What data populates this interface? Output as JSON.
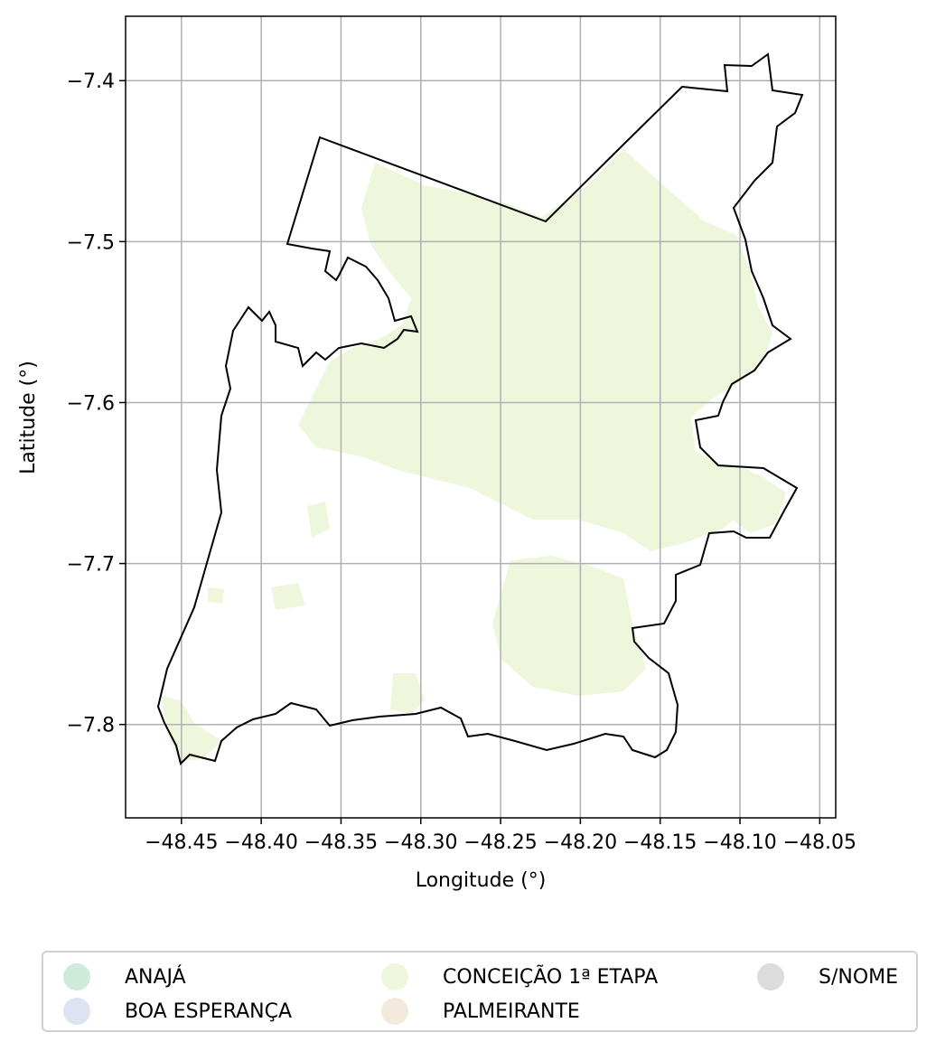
{
  "map": {
    "xlabel": "Longitude (°)",
    "ylabel": "Latitude (°)",
    "x_ticks": [
      "−48.45",
      "−48.40",
      "−48.35",
      "−48.30",
      "−48.25",
      "−48.20",
      "−48.15",
      "−48.10",
      "−48.05"
    ],
    "y_ticks": [
      "−7.4",
      "−7.5",
      "−7.6",
      "−7.7",
      "−7.8"
    ],
    "x_tick_values": [
      -48.45,
      -48.4,
      -48.35,
      -48.3,
      -48.25,
      -48.2,
      -48.15,
      -48.1,
      -48.05
    ],
    "y_tick_values": [
      -7.4,
      -7.5,
      -7.6,
      -7.7,
      -7.8
    ],
    "xlim": [
      -48.485,
      -48.04
    ],
    "ylim": [
      -7.858,
      -7.36
    ],
    "grid": true,
    "boundary_color": "#000000",
    "fill_color": "#eef7dc",
    "grid_color": "#b0b0b0"
  },
  "legend": {
    "placement": "bottom",
    "items": [
      {
        "label": "ANAJÁ",
        "color": "#cdeadb"
      },
      {
        "label": "BOA ESPERANÇA",
        "color": "#dde3f1"
      },
      {
        "label": "CONCEIÇÃO 1ª ETAPA",
        "color": "#eef7dc"
      },
      {
        "label": "PALMEIRANTE",
        "color": "#f4eadb"
      },
      {
        "label": "S/NOME",
        "color": "#dcdcdc"
      }
    ]
  }
}
